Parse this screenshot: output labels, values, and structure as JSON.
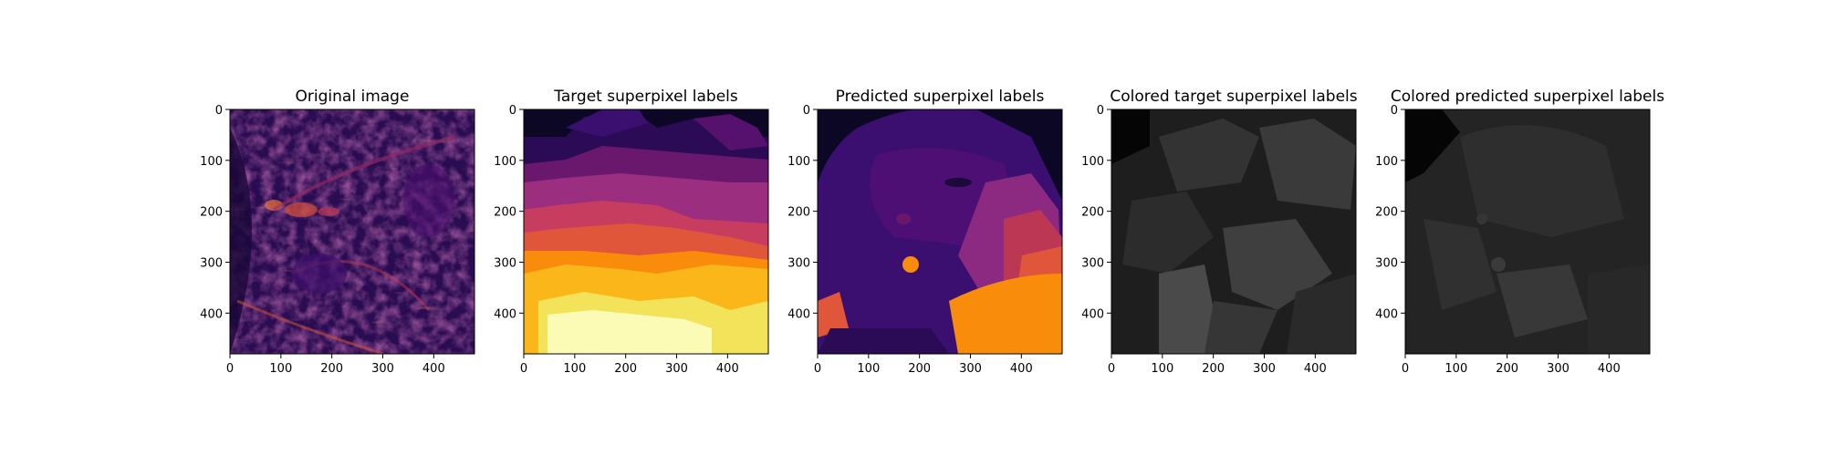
{
  "figure": {
    "panels": [
      {
        "title": "Original image",
        "colormap": "inferno",
        "content": "MRI cross-section rendered with inferno colormap"
      },
      {
        "title": "Target superpixel labels",
        "colormap": "inferno",
        "content": "label map with horizontal bands: black top, purple, magenta, orange, yellow bottom"
      },
      {
        "title": "Predicted superpixel labels",
        "colormap": "inferno",
        "content": "label map: black top corners, purple center, magenta/orange right, orange bottom-right"
      },
      {
        "title": "Colored target superpixel labels",
        "colormap": "gray",
        "content": "grayscale label map, mostly dark gray regions"
      },
      {
        "title": "Colored predicted superpixel labels",
        "colormap": "gray",
        "content": "grayscale label map, mostly dark gray regions"
      }
    ],
    "x_ticks": [
      "0",
      "100",
      "200",
      "300",
      "400"
    ],
    "y_ticks": [
      "0",
      "100",
      "200",
      "300",
      "400"
    ],
    "xlim": [
      0,
      480
    ],
    "ylim": [
      480,
      0
    ]
  },
  "colors": {
    "inferno_black": "#0b0724",
    "inferno_purple": "#3b0f70",
    "inferno_magenta": "#8c2981",
    "inferno_red": "#dd513a",
    "inferno_orange": "#fc8961",
    "inferno_yellow": "#fcfdbf"
  }
}
